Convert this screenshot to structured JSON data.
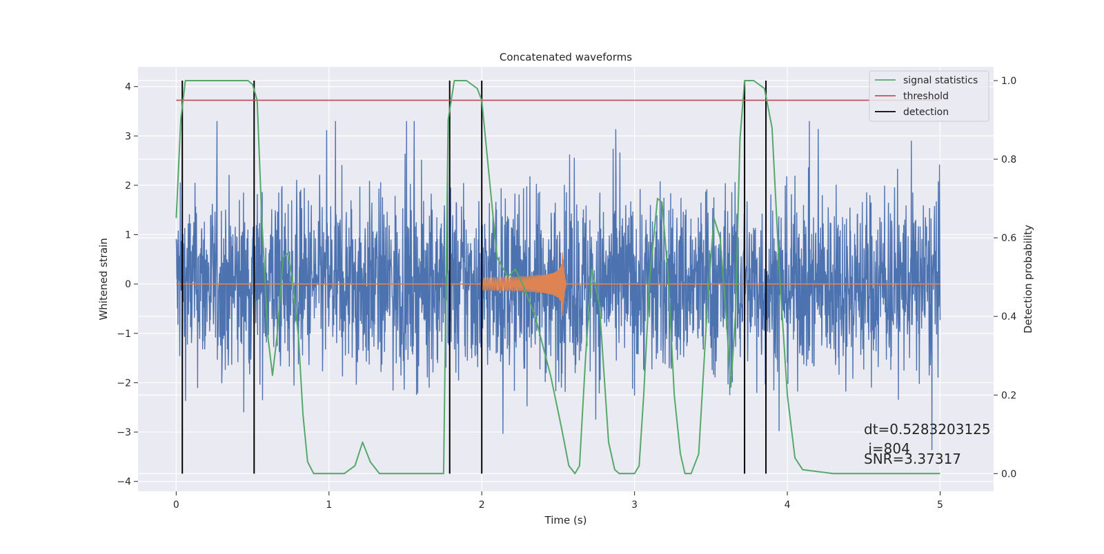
{
  "chart_data": {
    "type": "line",
    "title": "Concatenated waveforms",
    "xlabel": "Time (s)",
    "ylabel_left": "Whitened strain",
    "ylabel_right": "Detection probability",
    "xlim": [
      -0.25,
      5.35
    ],
    "ylim_left": [
      -4.2,
      4.4
    ],
    "ylim_right": [
      -0.045,
      1.035
    ],
    "grid": true,
    "legend_position": "top-right",
    "x_ticks": [
      "0",
      "1",
      "2",
      "3",
      "4",
      "5"
    ],
    "y_ticks_left": [
      "4",
      "3",
      "2",
      "1",
      "0",
      "−1",
      "−2",
      "−3",
      "−4"
    ],
    "y_ticks_right": [
      "1.0",
      "0.8",
      "0.6",
      "0.4",
      "0.2",
      "0.0"
    ],
    "series": [
      {
        "name": "signal statistics",
        "color": "#55a868",
        "axis": "right",
        "x": [
          0,
          0.03,
          0.06,
          0.1,
          0.2,
          0.3,
          0.4,
          0.47,
          0.5,
          0.53,
          0.56,
          0.6,
          0.63,
          0.66,
          0.7,
          0.73,
          0.76,
          0.8,
          0.83,
          0.86,
          0.9,
          1.0,
          1.1,
          1.17,
          1.22,
          1.27,
          1.33,
          1.45,
          1.6,
          1.75,
          1.76,
          1.78,
          1.82,
          1.9,
          1.97,
          2.0,
          2.05,
          2.1,
          2.17,
          2.22,
          2.27,
          2.35,
          2.45,
          2.52,
          2.57,
          2.61,
          2.64,
          2.68,
          2.72,
          2.77,
          2.83,
          2.87,
          2.9,
          2.96,
          3.0,
          3.03,
          3.06,
          3.1,
          3.15,
          3.18,
          3.22,
          3.26,
          3.3,
          3.33,
          3.37,
          3.42,
          3.48,
          3.52,
          3.56,
          3.6,
          3.63,
          3.66,
          3.69,
          3.72,
          3.78,
          3.85,
          3.9,
          3.95,
          4.0,
          4.05,
          4.1,
          4.3,
          4.6,
          5.0
        ],
        "values": [
          0.65,
          0.9,
          1.0,
          1.0,
          1.0,
          1.0,
          1.0,
          1.0,
          0.99,
          0.95,
          0.65,
          0.35,
          0.25,
          0.35,
          0.55,
          0.56,
          0.5,
          0.35,
          0.15,
          0.03,
          0.0,
          0.0,
          0.0,
          0.02,
          0.08,
          0.03,
          0.0,
          0.0,
          0.0,
          0.0,
          0.3,
          0.9,
          1.0,
          1.0,
          0.98,
          0.95,
          0.75,
          0.55,
          0.5,
          0.52,
          0.48,
          0.4,
          0.25,
          0.12,
          0.02,
          0.0,
          0.02,
          0.3,
          0.52,
          0.43,
          0.08,
          0.01,
          0.0,
          0.0,
          0.0,
          0.02,
          0.2,
          0.5,
          0.7,
          0.69,
          0.5,
          0.2,
          0.05,
          0.0,
          0.0,
          0.05,
          0.45,
          0.65,
          0.6,
          0.4,
          0.22,
          0.4,
          0.85,
          1.0,
          1.0,
          0.98,
          0.88,
          0.5,
          0.2,
          0.04,
          0.01,
          0.0,
          0.0,
          0.0
        ]
      },
      {
        "name": "threshold",
        "color": "#c44e52",
        "axis": "right",
        "x": [
          0,
          5
        ],
        "values": [
          0.95,
          0.95
        ]
      },
      {
        "name": "detection",
        "color": "#000000",
        "axis": "right",
        "type": "vlines",
        "x": [
          0.04,
          0.51,
          1.79,
          2.0,
          3.72,
          3.86
        ],
        "range": [
          0.0,
          1.0
        ]
      },
      {
        "name": "",
        "color": "#4c72b0",
        "axis": "left",
        "type": "noise",
        "x_range": [
          0,
          5
        ],
        "amplitude_range": [
          -3.8,
          3.3
        ]
      },
      {
        "name": "",
        "color": "#dd8452",
        "axis": "left",
        "type": "chirp",
        "x_range": [
          2.0,
          2.55
        ],
        "peak_x": 2.53,
        "peak_amplitude": 0.8
      }
    ],
    "annotations": [
      "dt=0.5283203125",
      " i=804",
      "SNR=3.37317"
    ]
  }
}
